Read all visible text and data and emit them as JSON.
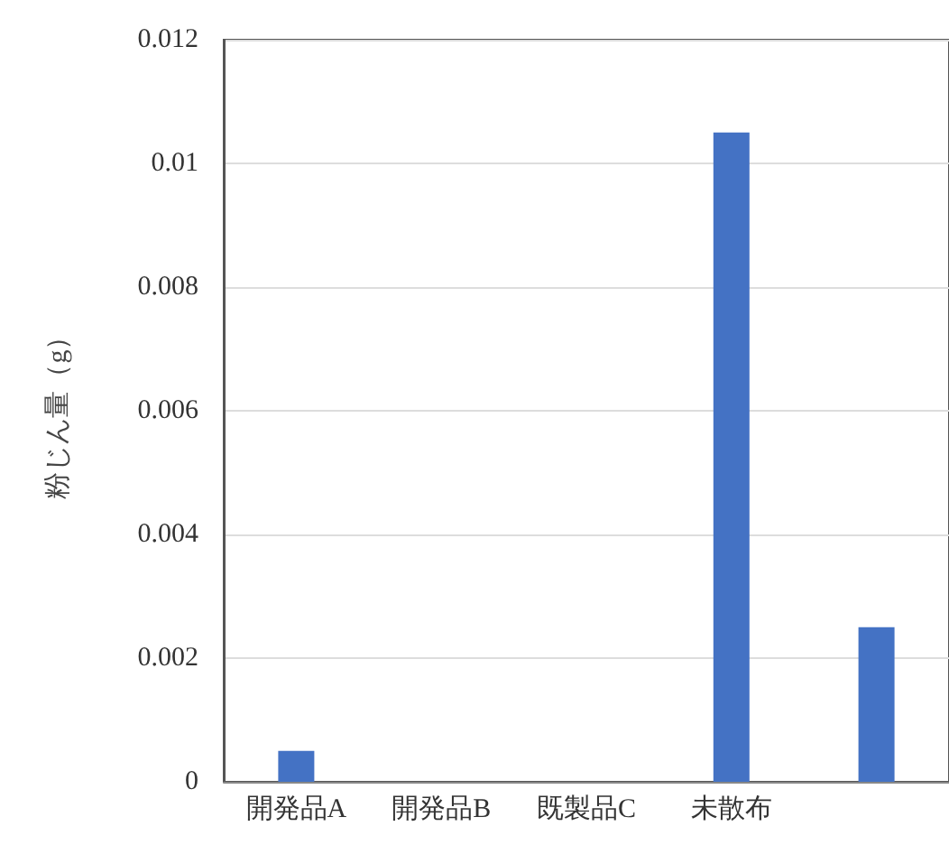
{
  "chart_data": {
    "type": "bar",
    "ylabel": "粉じん量（g）",
    "categories": [
      "開発品A",
      "開発品B",
      "既製品C",
      "未散布",
      null
    ],
    "values": [
      0.0005,
      0,
      0,
      0.0105,
      0.0025
    ],
    "color": "#4472c4",
    "ylim": [
      0,
      0.012
    ],
    "yticks": [
      0,
      0.002,
      0.004,
      0.006,
      0.008,
      0.01,
      0.012
    ],
    "grid": "y"
  }
}
